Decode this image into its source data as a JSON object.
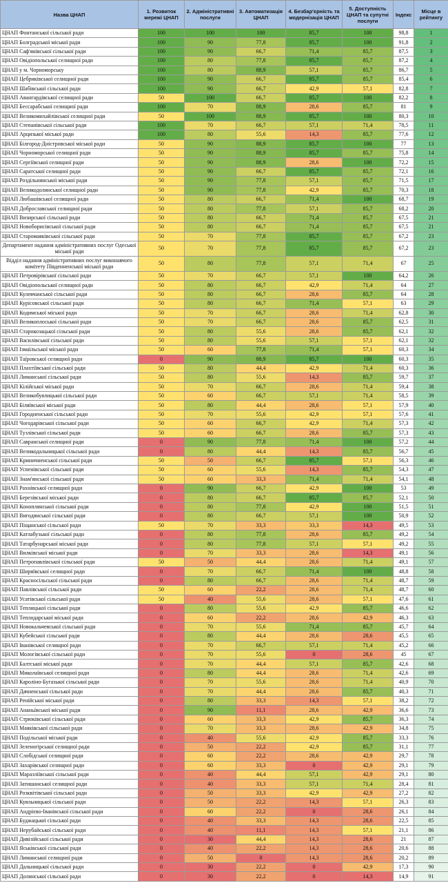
{
  "headers": [
    "Назва ЦНАП",
    "1. Розвиток мережі ЦНАП",
    "2. Адміністративні послуги",
    "3. Автоматизація ЦНАП",
    "4. Безбар'єрність та модернізація ЦНАП",
    "5. Доступність ЦНАП та супутні послуги",
    "Індекс",
    "Місце в рейтингу"
  ],
  "colors": {
    "header_bg": "#a9c3e5"
  },
  "rows": [
    [
      "ЦНАП Фонтанської сільської ради",
      "100",
      "100",
      "100",
      "85,7",
      "100",
      "98,8",
      "1"
    ],
    [
      "ЦНАП Болградської міської ради",
      "100",
      "90",
      "77,8",
      "85,7",
      "100",
      "91,8",
      "2"
    ],
    [
      "ЦНАП Саф'янівської сільської ради",
      "100",
      "90",
      "66,7",
      "71,4",
      "85,7",
      "87,5",
      "3"
    ],
    [
      "ЦНАП Овідіопольської селищної ради",
      "100",
      "80",
      "77,8",
      "85,7",
      "85,7",
      "87,2",
      "4"
    ],
    [
      "ЦНАП у м. Чорноморську",
      "100",
      "80",
      "88,9",
      "57,1",
      "85,7",
      "86,7",
      "5"
    ],
    [
      "ЦНАП Цебриківської селищної ради",
      "100",
      "90",
      "66,7",
      "85,7",
      "85,7",
      "85,4",
      "6"
    ],
    [
      "ЦНАП Шабівської сільської ради",
      "100",
      "90",
      "66,7",
      "42,9",
      "57,1",
      "82,8",
      "7"
    ],
    [
      "ЦНАП Авангардівської селищної ради",
      "50",
      "100",
      "66,7",
      "85,7",
      "100",
      "82,2",
      "8"
    ],
    [
      "ЦНАП Бессарабської селищної ради",
      "100",
      "70",
      "88,9",
      "28,6",
      "85,7",
      "81",
      "9"
    ],
    [
      "ЦНАП Великомихайлівської селищної ради",
      "50",
      "100",
      "88,9",
      "85,7",
      "100",
      "80,3",
      "10"
    ],
    [
      "ЦНАП Степанівської сільської ради",
      "100",
      "70",
      "66,7",
      "57,1",
      "71,4",
      "78,5",
      "11"
    ],
    [
      "ЦНАП Арцизької міської ради",
      "100",
      "80",
      "55,6",
      "14,3",
      "85,7",
      "77,6",
      "12"
    ],
    [
      "ЦНАП Білгород-Дністровської міської ради",
      "50",
      "90",
      "88,9",
      "85,7",
      "100",
      "77",
      "13"
    ],
    [
      "ЦНАП Чорноморської селищної ради",
      "50",
      "90",
      "88,9",
      "85,7",
      "85,7",
      "75,8",
      "14"
    ],
    [
      "ЦНАП Сергіївської селищної ради",
      "50",
      "90",
      "88,9",
      "28,6",
      "100",
      "72,2",
      "15"
    ],
    [
      "ЦНАП Саратської селищної ради",
      "50",
      "90",
      "66,7",
      "85,7",
      "85,7",
      "72,1",
      "16"
    ],
    [
      "ЦНАП Роздільнянської міської ради",
      "50",
      "90",
      "77,8",
      "57,1",
      "85,7",
      "71,5",
      "17"
    ],
    [
      "ЦНАП Великодолинської селищної ради",
      "50",
      "90",
      "77,8",
      "42,9",
      "85,7",
      "70,3",
      "18"
    ],
    [
      "ЦНАП Любашівської селищної ради",
      "50",
      "80",
      "66,7",
      "71,4",
      "100",
      "68,7",
      "19"
    ],
    [
      "ЦНАП Доброславської селищної ради",
      "50",
      "80",
      "77,8",
      "57,1",
      "85,7",
      "68,2",
      "20"
    ],
    [
      "ЦНАП Визирської сільської ради",
      "50",
      "80",
      "66,7",
      "71,4",
      "85,7",
      "67,5",
      "21"
    ],
    [
      "ЦНАП Новоборисівської сільської ради",
      "50",
      "80",
      "66,7",
      "71,4",
      "85,7",
      "67,5",
      "21"
    ],
    [
      "ЦНАП Старомаяківської сільської ради",
      "50",
      "70",
      "77,8",
      "85,7",
      "85,7",
      "67,2",
      "23"
    ],
    [
      "Департамент надання адміністративних послуг Одеської міської ради",
      "50",
      "70",
      "77,8",
      "85,7",
      "85,7",
      "67,2",
      "23"
    ],
    [
      "Відділ надання адміністративних послуг виконавчого комітету Південненської міської ради",
      "50",
      "80",
      "77,8",
      "57,1",
      "71,4",
      "67",
      "25"
    ],
    [
      "ЦНАП Петровірівської сільської ради",
      "50",
      "70",
      "66,7",
      "57,1",
      "100",
      "64,2",
      "26"
    ],
    [
      "ЦНАП Овідіопольської селищної ради",
      "50",
      "80",
      "66,7",
      "42,9",
      "71,4",
      "64",
      "27"
    ],
    [
      "ЦНАП Кулевчанської сільської ради",
      "50",
      "80",
      "66,7",
      "28,6",
      "85,7",
      "64",
      "28"
    ],
    [
      "ЦНАП Курісовської сільської ради",
      "50",
      "80",
      "66,7",
      "71,4",
      "57,1",
      "63",
      "29"
    ],
    [
      "ЦНАП Кодимської міської ради",
      "50",
      "70",
      "66,7",
      "28,6",
      "71,4",
      "62,8",
      "30"
    ],
    [
      "ЦНАП Великоплоської сільської ради",
      "50",
      "70",
      "66,7",
      "28,6",
      "85,7",
      "62,5",
      "31"
    ],
    [
      "ЦНАП Старокозацької сільської ради",
      "50",
      "80",
      "55,6",
      "28,6",
      "85,7",
      "62,1",
      "32"
    ],
    [
      "ЦНАП Василівської сільської ради",
      "50",
      "80",
      "55,6",
      "57,1",
      "57,1",
      "62,1",
      "32"
    ],
    [
      "ЦНАП Ізмаїльської міської ради",
      "50",
      "60",
      "77,8",
      "71,4",
      "57,1",
      "60,3",
      "34"
    ],
    [
      "ЦНАП Таїровської селищної ради",
      "0",
      "90",
      "88,9",
      "85,7",
      "100",
      "60,3",
      "35"
    ],
    [
      "ЦНАП Плахтіївської сільської ради",
      "50",
      "80",
      "44,4",
      "42,9",
      "71,4",
      "60,3",
      "36"
    ],
    [
      "ЦНАП Лиманської сільської ради",
      "50",
      "80",
      "55,6",
      "14,3",
      "85,7",
      "59,7",
      "37"
    ],
    [
      "ЦНАП Кілійської міської ради",
      "50",
      "70",
      "66,7",
      "28,6",
      "71,4",
      "59,4",
      "38"
    ],
    [
      "ЦНАП Великобуялицької сільської ради",
      "50",
      "60",
      "66,7",
      "57,1",
      "71,4",
      "58,5",
      "39"
    ],
    [
      "ЦНАП Біляївської міської ради",
      "50",
      "80",
      "44,4",
      "28,6",
      "57,1",
      "57,9",
      "40"
    ],
    [
      "ЦНАП Городненської сільської ради",
      "50",
      "70",
      "55,6",
      "42,9",
      "57,1",
      "57,6",
      "41"
    ],
    [
      "ЦНАП Чогодарівської сільської ради",
      "50",
      "60",
      "66,7",
      "42,9",
      "71,4",
      "57,3",
      "42"
    ],
    [
      "ЦНАП Тузлівської сільської ради",
      "50",
      "60",
      "66,7",
      "28,6",
      "85,7",
      "57,3",
      "43"
    ],
    [
      "ЦНАП Савранської селищної ради",
      "0",
      "90",
      "77,8",
      "71,4",
      "100",
      "57,2",
      "44"
    ],
    [
      "ЦНАП Великодальницької сільської ради",
      "0",
      "80",
      "44,4",
      "14,3",
      "85,7",
      "56,7",
      "45"
    ],
    [
      "ЦНАП Криничненської сільської ради",
      "50",
      "50",
      "66,7",
      "85,7",
      "57,1",
      "56,3",
      "46"
    ],
    [
      "ЦНАП Успенівської сільської ради",
      "50",
      "60",
      "55,6",
      "14,3",
      "85,7",
      "54,3",
      "47"
    ],
    [
      "ЦНАП Знам'янської сільської ради",
      "50",
      "60",
      "33,3",
      "71,4",
      "71,4",
      "54,1",
      "48"
    ],
    [
      "ЦНАП Рахнівської селищної ради",
      "0",
      "90",
      "66,7",
      "42,9",
      "100",
      "53",
      "49"
    ],
    [
      "ЦНАП Березівської міської ради",
      "0",
      "80",
      "66,7",
      "85,7",
      "85,7",
      "52,1",
      "50"
    ],
    [
      "ЦНАП Коноплянської сільської ради",
      "0",
      "80",
      "77,8",
      "42,9",
      "100",
      "51,5",
      "51"
    ],
    [
      "ЦНАП Вигодянської сільської ради",
      "0",
      "80",
      "66,7",
      "57,1",
      "100",
      "50,9",
      "52"
    ],
    [
      "ЦНАП Піщанської сільської ради",
      "50",
      "70",
      "33,3",
      "33,3",
      "14,3",
      "49,5",
      "53"
    ],
    [
      "ЦНАП Катлабузької сільської ради",
      "0",
      "80",
      "77,8",
      "28,6",
      "85,7",
      "49,2",
      "54"
    ],
    [
      "ЦНАП Татарбунарської міської ради",
      "0",
      "80",
      "77,8",
      "57,1",
      "57,1",
      "49,2",
      "55"
    ],
    [
      "ЦНАП Вилківської міської ради",
      "0",
      "70",
      "33,3",
      "28,6",
      "14,3",
      "49,1",
      "56"
    ],
    [
      "ЦНАП Петропавлівської сільської ради",
      "50",
      "50",
      "44,4",
      "28,6",
      "71,4",
      "49,1",
      "57"
    ],
    [
      "ЦНАП Ширяївської селищної ради",
      "0",
      "70",
      "66,7",
      "71,4",
      "100",
      "48,8",
      "58"
    ],
    [
      "ЦНАП Красносільської сільської ради",
      "0",
      "80",
      "66,7",
      "28,6",
      "71,4",
      "48,7",
      "59"
    ],
    [
      "ЦНАП Павлівської сільської ради",
      "50",
      "60",
      "22,2",
      "28,6",
      "71,4",
      "48,7",
      "60"
    ],
    [
      "ЦНАП Усатівської сільської ради",
      "50",
      "40",
      "55,6",
      "28,6",
      "57,1",
      "47,6",
      "61"
    ],
    [
      "ЦНАП Теплицької сільської ради",
      "0",
      "80",
      "55,6",
      "42,9",
      "85,7",
      "46,6",
      "62"
    ],
    [
      "ЦНАП Теплодарської міської ради",
      "0",
      "60",
      "22,2",
      "28,6",
      "42,9",
      "46,3",
      "63"
    ],
    [
      "ЦНАП Новокальчевської сільської ради",
      "0",
      "70",
      "55,6",
      "71,4",
      "85,7",
      "45,7",
      "64"
    ],
    [
      "ЦНАП Кубейської сільської ради",
      "0",
      "80",
      "44,4",
      "28,6",
      "28,6",
      "45,5",
      "65"
    ],
    [
      "ЦНАП Іванівської селищної ради",
      "0",
      "70",
      "66,7",
      "57,1",
      "71,4",
      "45,2",
      "66"
    ],
    [
      "ЦНАП Мологівської сільської ради",
      "0",
      "70",
      "55,6",
      "0",
      "28,6",
      "45",
      "67"
    ],
    [
      "ЦНАП Балтської міської ради",
      "0",
      "70",
      "44,4",
      "57,1",
      "85,7",
      "42,6",
      "68"
    ],
    [
      "ЦНАП Миколаївської селищної ради",
      "0",
      "80",
      "44,4",
      "28,6",
      "71,4",
      "42,6",
      "69"
    ],
    [
      "ЦНАП Кароліно-Бугазької сільської ради",
      "0",
      "70",
      "55,6",
      "28,6",
      "71,4",
      "40,9",
      "70"
    ],
    [
      "ЦНАП Дачненської сільської ради",
      "0",
      "70",
      "44,4",
      "28,6",
      "85,7",
      "40,3",
      "71"
    ],
    [
      "ЦНАП Ренійської міської ради",
      "0",
      "80",
      "33,3",
      "14,3",
      "57,1",
      "38,2",
      "72"
    ],
    [
      "ЦНАП Ананьївської міської ради",
      "0",
      "90",
      "11,1",
      "28,6",
      "42,9",
      "36,6",
      "73"
    ],
    [
      "ЦНАП Стрюківської сільської ради",
      "0",
      "60",
      "33,3",
      "42,9",
      "85,7",
      "36,3",
      "74"
    ],
    [
      "ЦНАП Маяківської сільської ради",
      "0",
      "70",
      "33,3",
      "28,6",
      "42,9",
      "34,8",
      "75"
    ],
    [
      "ЦНАП Подільської міської ради",
      "0",
      "40",
      "55,6",
      "42,9",
      "85,7",
      "33,3",
      "76"
    ],
    [
      "ЦНАП Зеленогірської селищної ради",
      "0",
      "50",
      "22,2",
      "42,9",
      "85,7",
      "31,1",
      "77"
    ],
    [
      "ЦНАП Слобідської селищної ради",
      "0",
      "60",
      "22,2",
      "28,6",
      "42,9",
      "29,7",
      "78"
    ],
    [
      "ЦНАП Захарівської селищної ради",
      "0",
      "60",
      "33,3",
      "0",
      "42,9",
      "29,1",
      "79"
    ],
    [
      "ЦНАП Маразліївської сільської ради",
      "0",
      "40",
      "44,4",
      "57,1",
      "42,9",
      "29,1",
      "80"
    ],
    [
      "ЦНАП Затишанської селищної ради",
      "0",
      "40",
      "33,3",
      "57,1",
      "71,4",
      "28,4",
      "81"
    ],
    [
      "ЦНАП Розквітівської сільської ради",
      "0",
      "50",
      "33,3",
      "42,9",
      "42,9",
      "27,2",
      "82"
    ],
    [
      "ЦНАП Куяльницької сільської ради",
      "0",
      "50",
      "22,2",
      "14,3",
      "57,1",
      "26,3",
      "83"
    ],
    [
      "ЦНАП Андрієво-Іванівської сільської ради",
      "0",
      "60",
      "22,2",
      "0",
      "28,6",
      "26,1",
      "84"
    ],
    [
      "ЦНАП Буджацької сільської ради",
      "0",
      "40",
      "33,3",
      "14,3",
      "28,6",
      "22,5",
      "85"
    ],
    [
      "ЦНАП Нерубайської сільської ради",
      "0",
      "40",
      "11,1",
      "14,3",
      "57,1",
      "21,1",
      "86"
    ],
    [
      "ЦНАП Дивізійської сільської ради",
      "0",
      "30",
      "44,4",
      "14,3",
      "28,6",
      "21",
      "87"
    ],
    [
      "ЦНАП Яськівської сільської ради",
      "0",
      "40",
      "22,2",
      "14,3",
      "28,6",
      "20,6",
      "88"
    ],
    [
      "ЦНАП Лиманської селищної ради",
      "0",
      "50",
      "0",
      "14,3",
      "28,6",
      "20,2",
      "89"
    ],
    [
      "ЦНАП Дальницької сільської ради",
      "0",
      "30",
      "22,2",
      "0",
      "42,9",
      "17,3",
      "90"
    ],
    [
      "ЦНАП Долинської сільської ради",
      "0",
      "30",
      "22,2",
      "0",
      "14,3",
      "14,9",
      "91"
    ]
  ]
}
